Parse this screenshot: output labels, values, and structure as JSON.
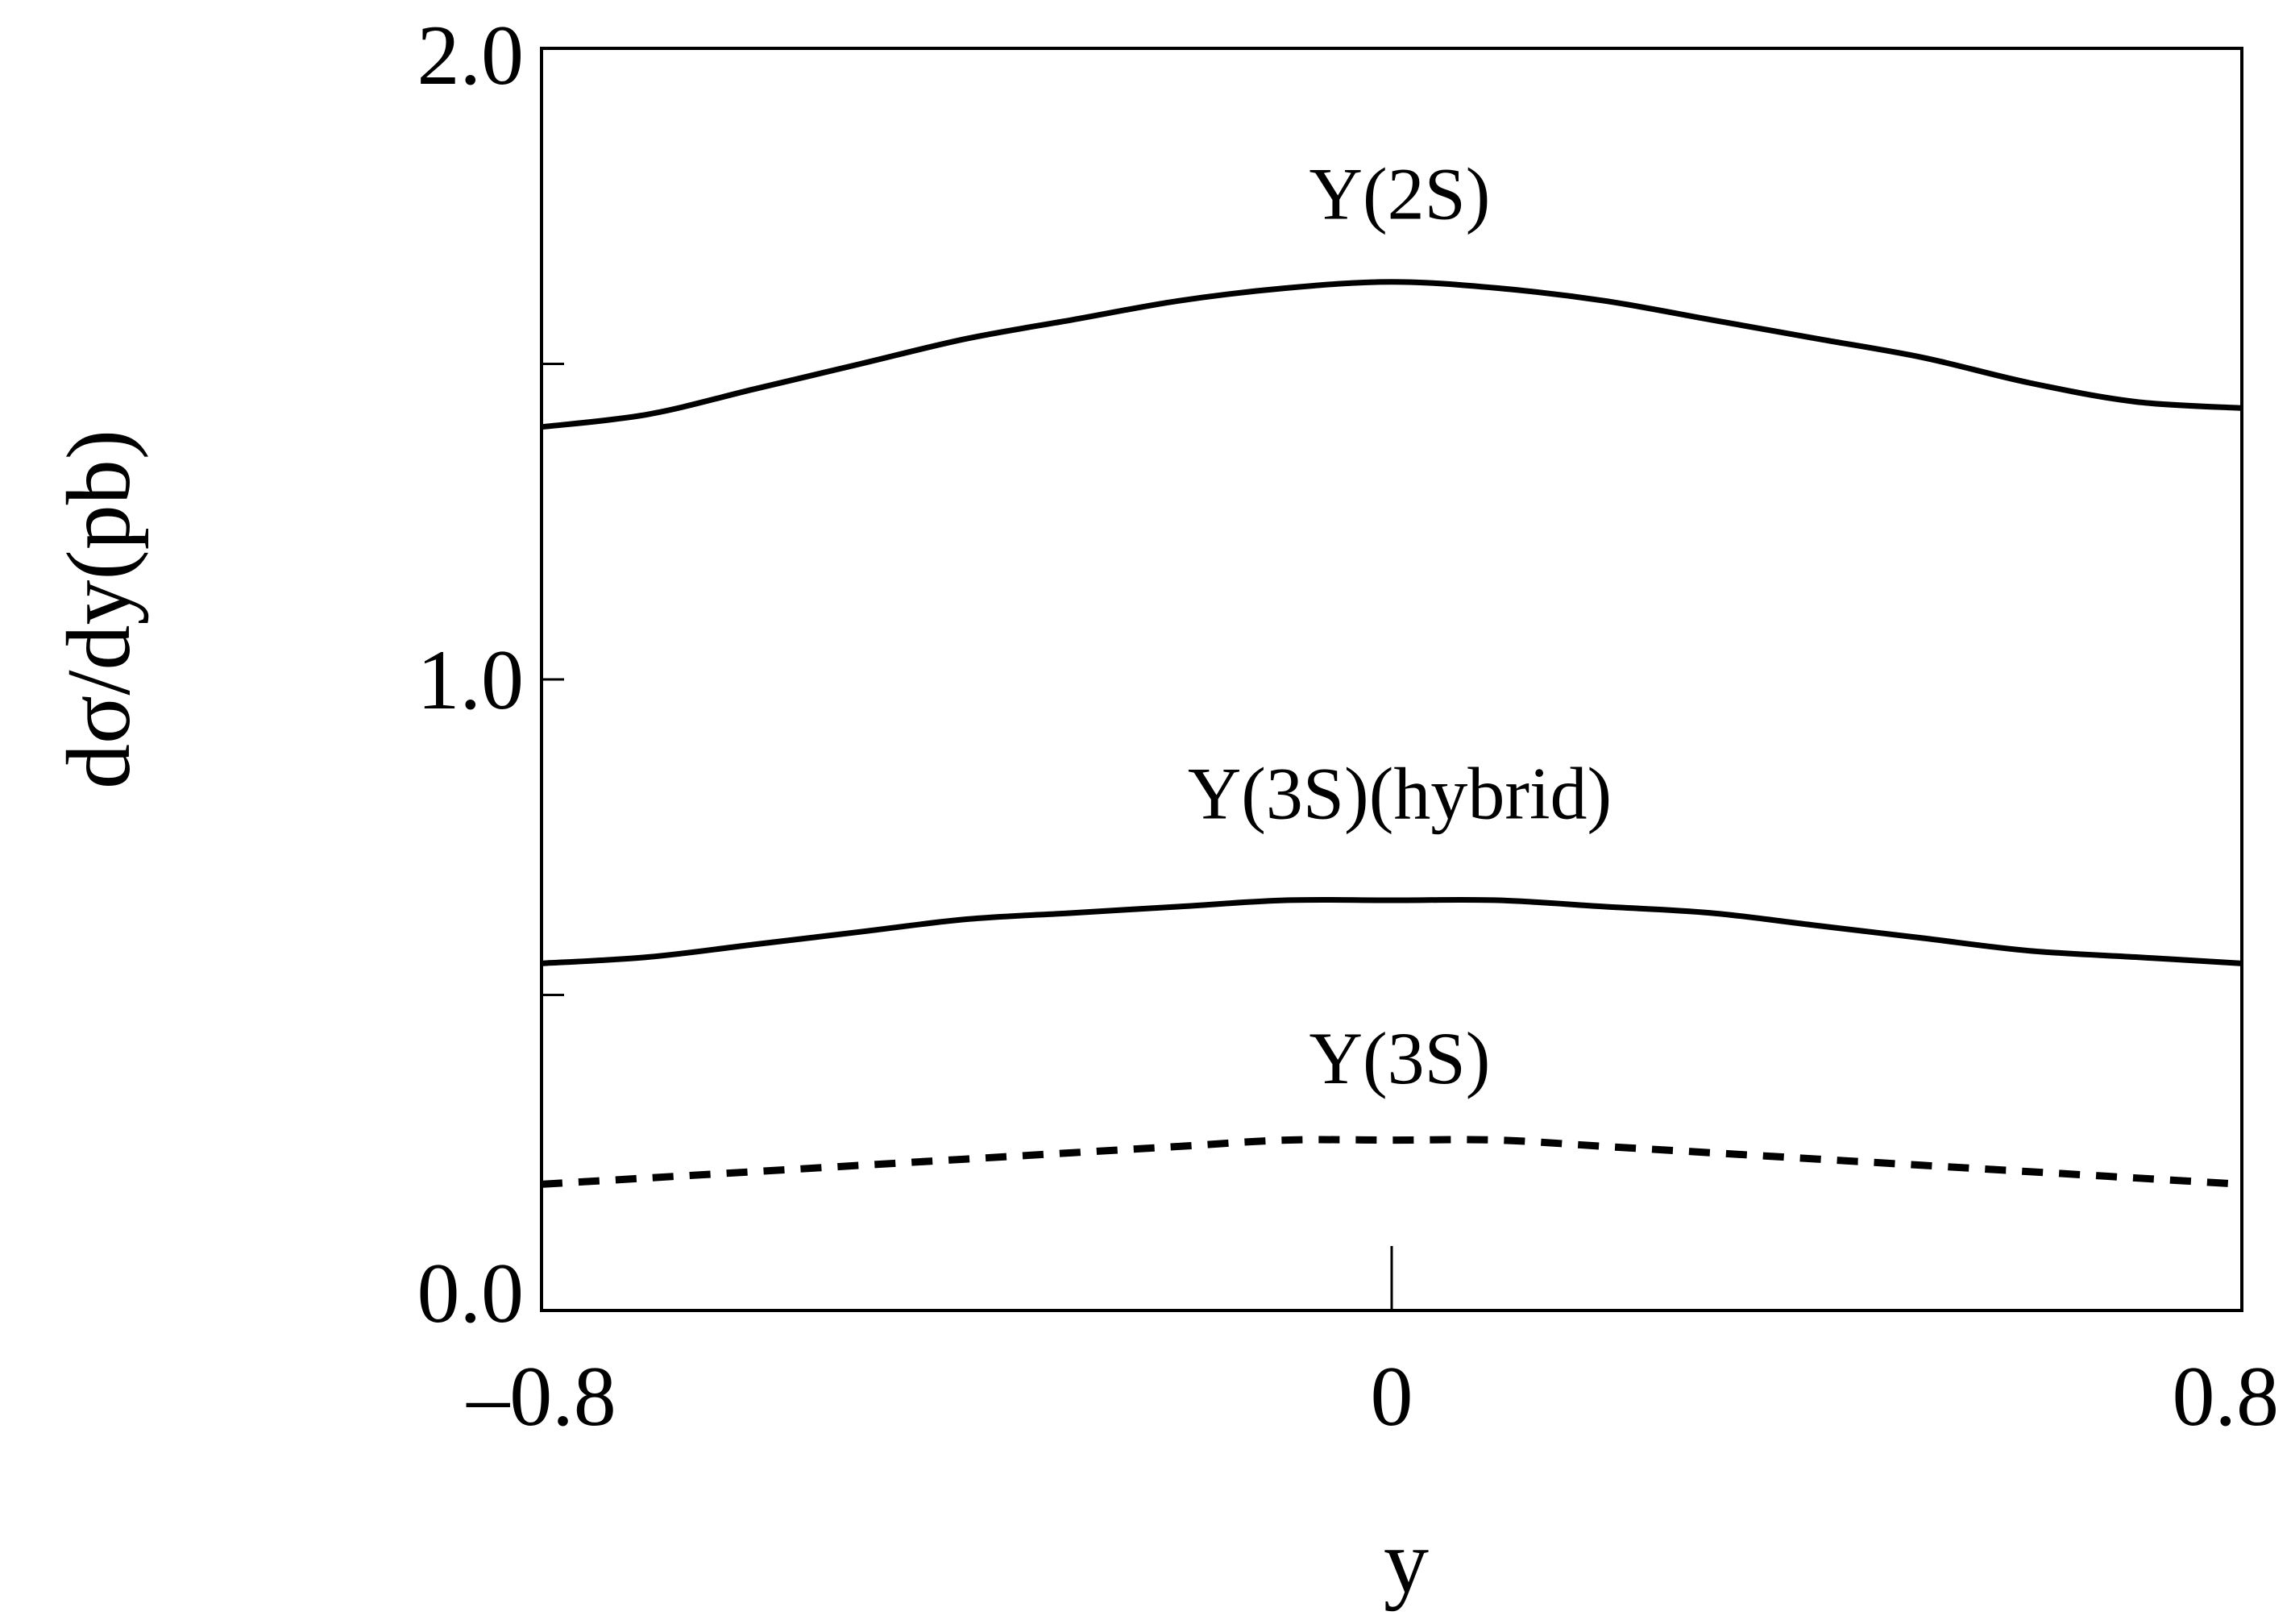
{
  "chart_data": {
    "type": "line",
    "xlabel": "y",
    "ylabel": "dσ/dy(pb)",
    "xlim": [
      -0.8,
      0.8
    ],
    "ylim": [
      0.0,
      2.0
    ],
    "x_ticks": [
      {
        "value": -0.8,
        "label": "–0.8"
      },
      {
        "value": 0,
        "label": "0"
      },
      {
        "value": 0.8,
        "label": "0.8"
      }
    ],
    "y_ticks": [
      {
        "value": 0.0,
        "label": "0.0"
      },
      {
        "value": 0.5,
        "label": ""
      },
      {
        "value": 1.0,
        "label": "1.0"
      },
      {
        "value": 1.5,
        "label": ""
      },
      {
        "value": 2.0,
        "label": "2.0"
      }
    ],
    "grid": false,
    "legend": "none",
    "x": [
      -0.8,
      -0.7,
      -0.6,
      -0.5,
      -0.4,
      -0.3,
      -0.2,
      -0.1,
      0.0,
      0.1,
      0.2,
      0.3,
      0.4,
      0.5,
      0.6,
      0.7,
      0.8
    ],
    "series": [
      {
        "name": "Υ(2S)",
        "style": "solid",
        "color": "#000000",
        "label_at": [
          0.0,
          1.73
        ],
        "values": [
          1.4,
          1.42,
          1.46,
          1.5,
          1.54,
          1.57,
          1.6,
          1.62,
          1.63,
          1.62,
          1.6,
          1.57,
          1.54,
          1.51,
          1.47,
          1.44,
          1.43
        ]
      },
      {
        "name": "Υ(3S)(hybrid)",
        "style": "solid",
        "color": "#000000",
        "label_at": [
          0.0,
          0.78
        ],
        "values": [
          0.55,
          0.56,
          0.58,
          0.6,
          0.62,
          0.63,
          0.64,
          0.65,
          0.65,
          0.65,
          0.64,
          0.63,
          0.61,
          0.59,
          0.57,
          0.56,
          0.55
        ]
      },
      {
        "name": "Υ(3S)",
        "style": "dashed",
        "color": "#000000",
        "label_at": [
          0.0,
          0.36
        ],
        "values": [
          0.2,
          0.21,
          0.22,
          0.23,
          0.24,
          0.25,
          0.26,
          0.27,
          0.27,
          0.27,
          0.26,
          0.25,
          0.24,
          0.23,
          0.22,
          0.21,
          0.2
        ]
      }
    ]
  }
}
